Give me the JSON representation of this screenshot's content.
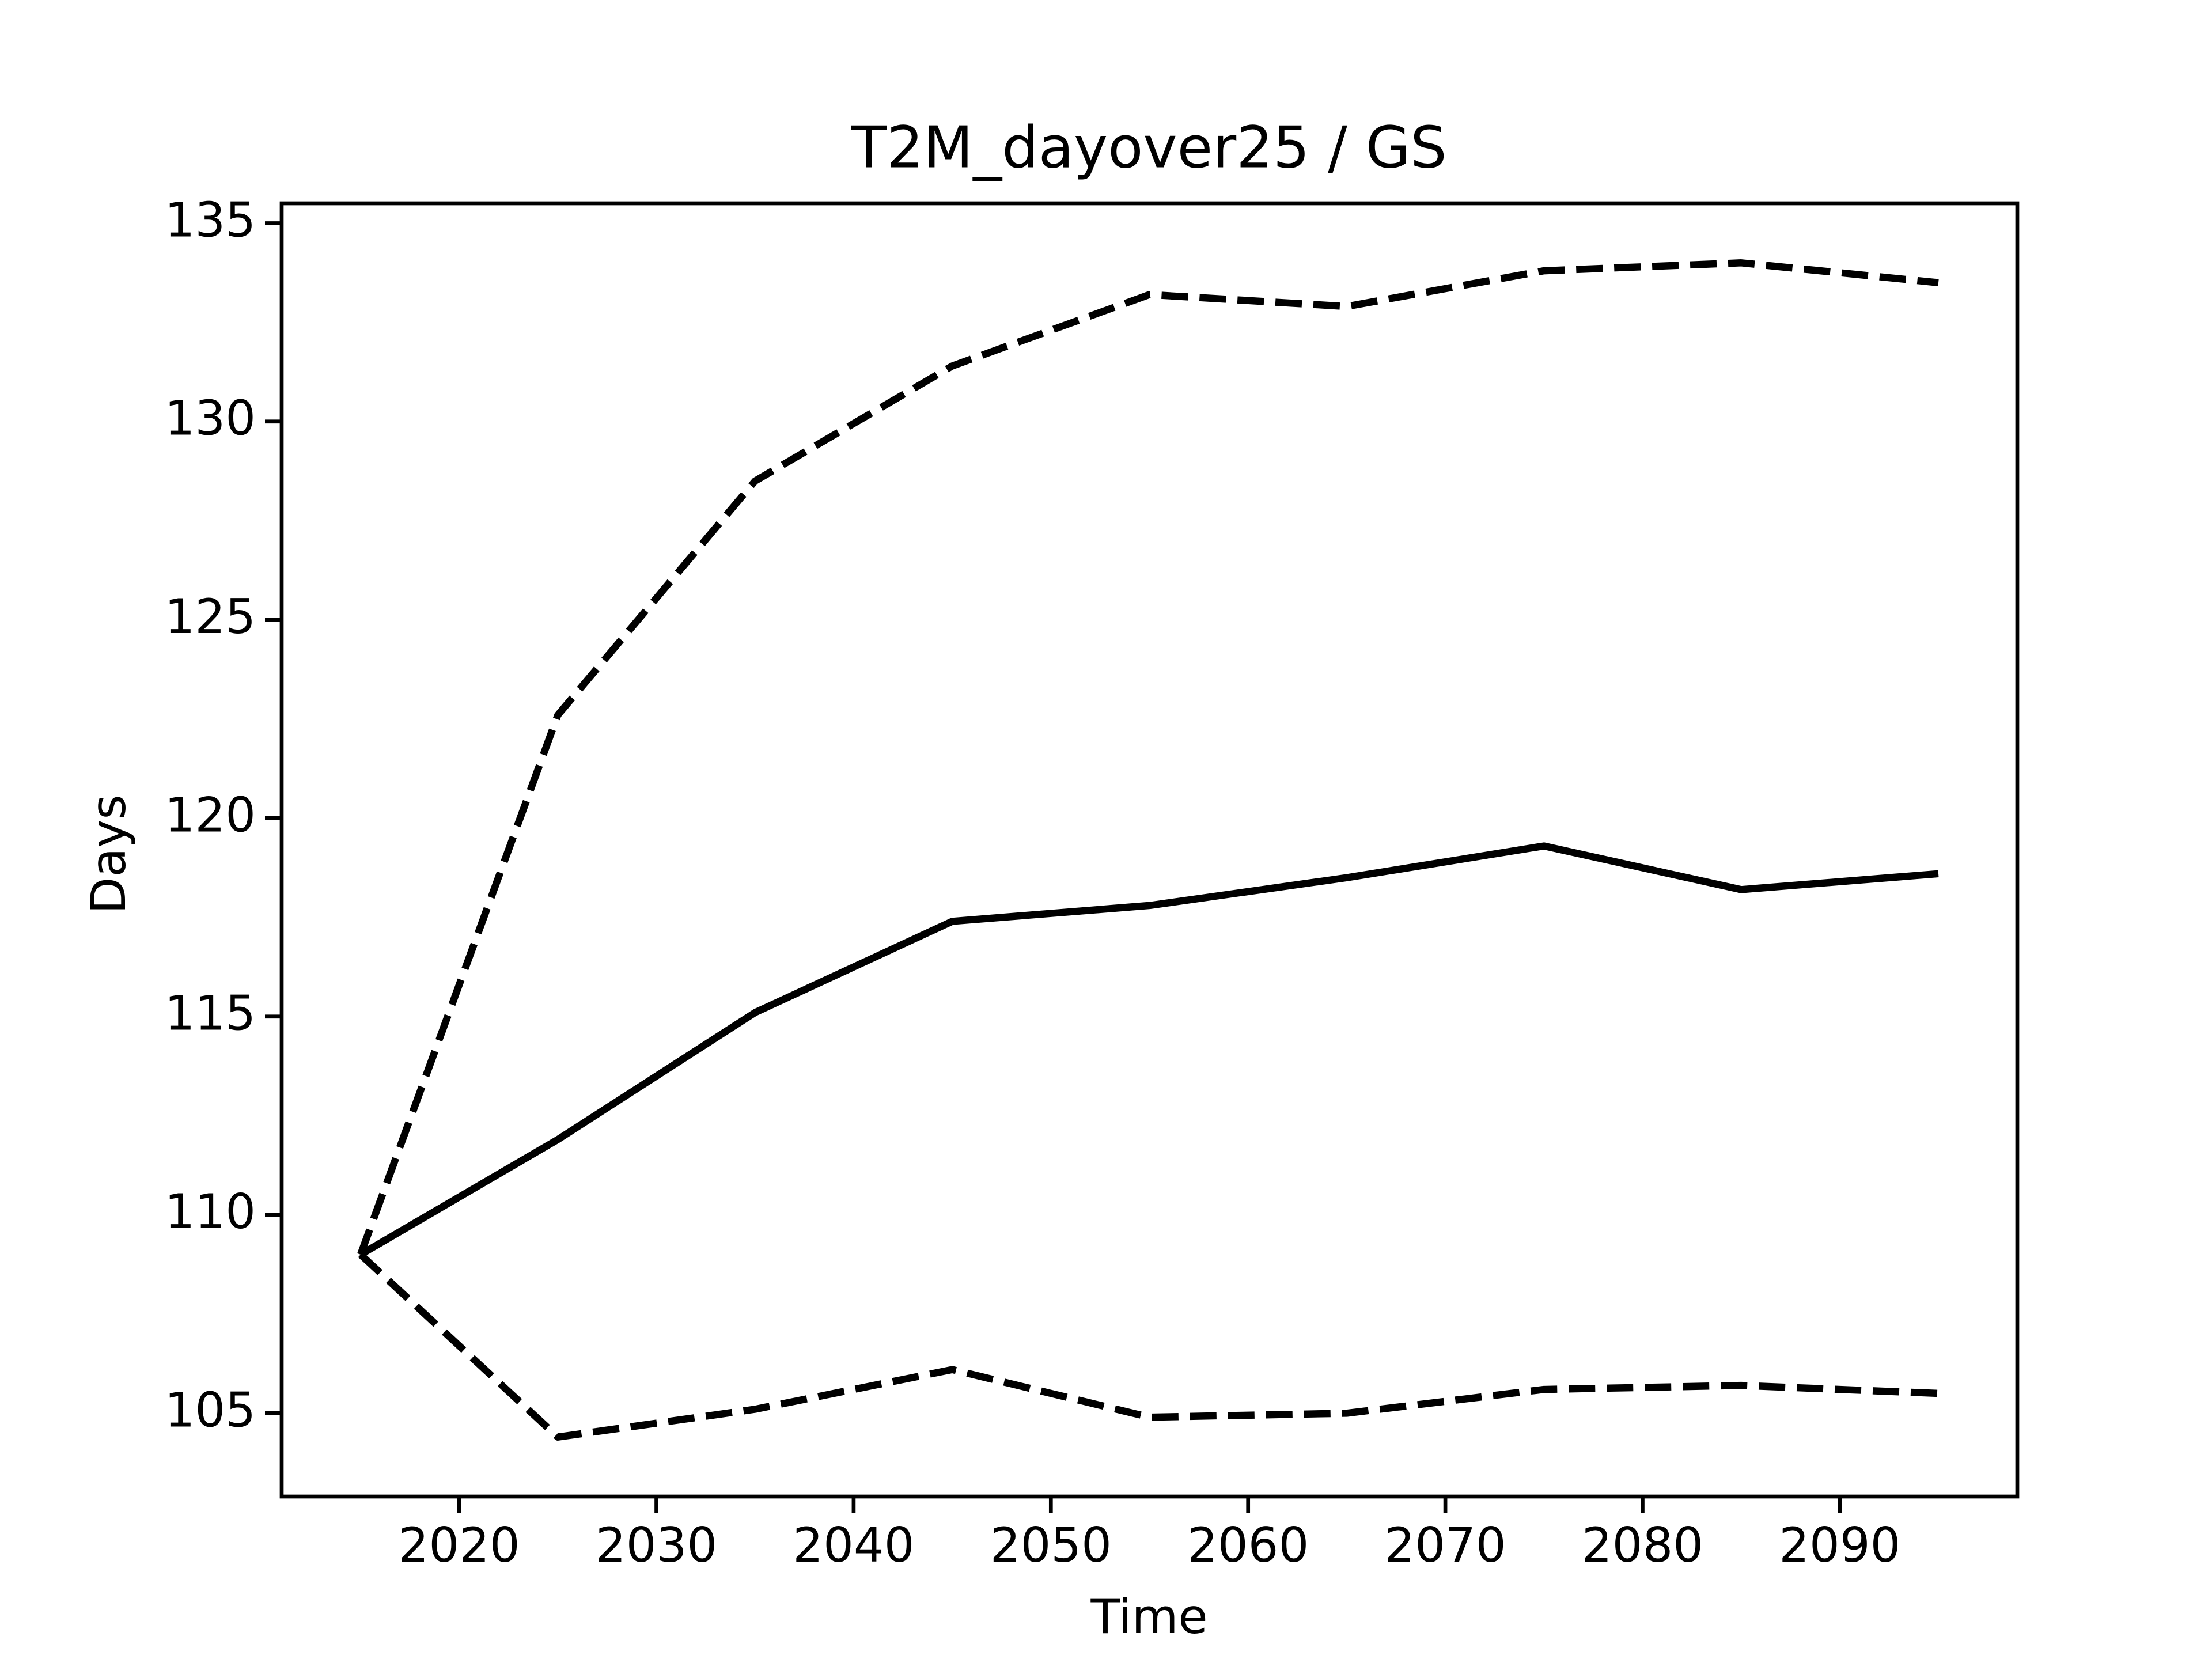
{
  "chart_data": {
    "type": "line",
    "title": "T2M_dayover25 / GS",
    "x_label": "Time",
    "y_label": "Days",
    "x": [
      2015,
      2025,
      2035,
      2045,
      2055,
      2065,
      2075,
      2085,
      2095
    ],
    "series": [
      {
        "color": "#000000",
        "style": "solid",
        "values": [
          109.0,
          111.9,
          115.1,
          117.4,
          117.8,
          118.5,
          119.3,
          118.2,
          118.6
        ]
      },
      {
        "color": "#000000",
        "style": "dashed",
        "values": [
          109.0,
          122.6,
          128.5,
          131.4,
          133.2,
          132.9,
          133.8,
          134.0,
          133.5
        ]
      },
      {
        "color": "#000000",
        "style": "dashed",
        "values": [
          109.0,
          104.4,
          105.1,
          106.1,
          104.9,
          105.0,
          105.6,
          105.7,
          105.5
        ]
      }
    ],
    "xlim": [
      2011,
      2099
    ],
    "xticks": [
      2020,
      2030,
      2040,
      2050,
      2060,
      2070,
      2080,
      2090
    ],
    "ylim": [
      102.9,
      135.5
    ],
    "yticks": [
      105,
      110,
      115,
      120,
      125,
      130,
      135
    ],
    "grid": false
  }
}
